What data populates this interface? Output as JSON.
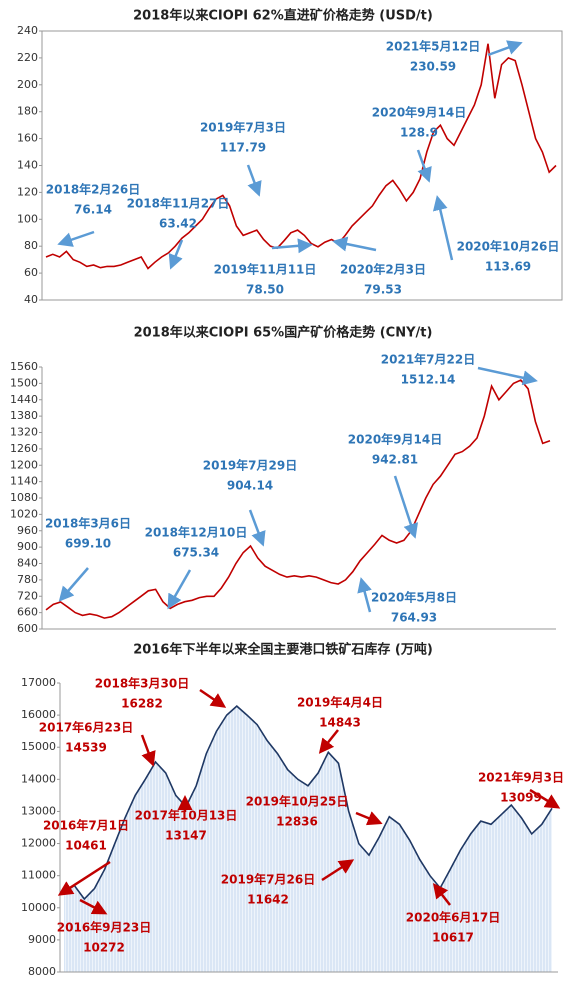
{
  "chart_data": [
    {
      "type": "line",
      "title": "2018年以来CIOPI 62%直进矿价格走势 (USD/t)",
      "ylim": [
        40,
        240
      ],
      "yticks": [
        40,
        60,
        80,
        100,
        120,
        140,
        160,
        180,
        200,
        220,
        240
      ],
      "grid": false,
      "series": [
        {
          "color": "#c00000",
          "values": [
            72,
            74,
            72,
            76.14,
            70,
            68,
            65,
            66,
            64,
            65,
            65,
            66,
            68,
            70,
            72,
            63.42,
            68,
            72,
            75,
            80,
            86,
            90,
            95,
            100,
            108,
            115,
            117.79,
            110,
            95,
            88,
            90,
            92,
            85,
            80,
            78.5,
            84,
            90,
            92,
            88,
            82,
            79.53,
            83,
            85,
            82,
            88,
            95,
            100,
            105,
            110,
            118,
            125,
            128.9,
            122,
            113.69,
            120,
            130,
            150,
            165,
            170,
            160,
            155,
            165,
            175,
            185,
            200,
            230.59,
            190,
            215,
            220,
            218,
            200,
            180,
            160,
            150,
            135,
            140
          ]
        }
      ],
      "annotations": [
        {
          "text": "2021年5月12日",
          "value": 230.59
        },
        {
          "text": "2020年9月14日",
          "value": 128.9
        },
        {
          "text": "2019年7月3日",
          "value": 117.79
        },
        {
          "text": "2018年2月26日",
          "value": 76.14
        },
        {
          "text": "2018年11月27日",
          "value": 63.42
        },
        {
          "text": "2019年11月11日",
          "value": {
            "value": 78.5,
            "label": "78.50"
          }
        },
        {
          "text": "2020年2月3日",
          "value": 79.53
        },
        {
          "text": "2020年10月26日",
          "value": 113.69
        }
      ]
    },
    {
      "type": "line",
      "title": "2018年以来CIOPI 65%国产矿价格走势 (CNY/t)",
      "ylim": [
        600,
        1560
      ],
      "yticks": [
        600,
        660,
        720,
        780,
        840,
        900,
        960,
        1020,
        1080,
        1140,
        1200,
        1260,
        1320,
        1380,
        1440,
        1500,
        1560
      ],
      "grid": false,
      "series": [
        {
          "color": "#c00000",
          "values": [
            670,
            690,
            699.1,
            680,
            660,
            650,
            655,
            650,
            640,
            645,
            660,
            680,
            700,
            720,
            740,
            745,
            700,
            675.34,
            690,
            700,
            705,
            715,
            720,
            720,
            750,
            790,
            840,
            880,
            904.14,
            860,
            830,
            815,
            800,
            790,
            795,
            790,
            795,
            790,
            780,
            770,
            764.93,
            780,
            810,
            850,
            880,
            910,
            942.81,
            925,
            915,
            925,
            960,
            1020,
            1080,
            1130,
            1160,
            1200,
            1240,
            1250,
            1270,
            1300,
            1380,
            1490,
            1440,
            1470,
            1500,
            1512.14,
            1480,
            1360,
            1280,
            1290
          ]
        }
      ],
      "annotations": [
        {
          "text": "2021年7月22日",
          "value": 1512.14
        },
        {
          "text": "2020年9月14日",
          "value": 942.81
        },
        {
          "text": "2019年7月29日",
          "value": 904.14
        },
        {
          "text": "2018年3月6日",
          "value": {
            "value": 699.1,
            "label": "699.10"
          }
        },
        {
          "text": "2018年12月10日",
          "value": 675.34
        },
        {
          "text": "2020年5月8日",
          "value": 764.93
        }
      ]
    },
    {
      "type": "area",
      "title": "2016年下半年以来全国主要港口铁矿石库存 (万吨)",
      "ylim": [
        8000,
        17000
      ],
      "yticks": [
        8000,
        9000,
        10000,
        11000,
        12000,
        13000,
        14000,
        15000,
        16000,
        17000
      ],
      "grid": false,
      "series": [
        {
          "color": "#1f3864",
          "values": [
            10461,
            10700,
            10272,
            10600,
            11200,
            12000,
            12800,
            13500,
            14000,
            14539,
            14200,
            13500,
            13147,
            13800,
            14800,
            15500,
            16000,
            16282,
            16000,
            15700,
            15200,
            14800,
            14300,
            14000,
            13800,
            14200,
            14843,
            14500,
            13000,
            12000,
            11642,
            12200,
            12836,
            12600,
            12100,
            11500,
            11000,
            10617,
            11200,
            11800,
            12300,
            12700,
            12600,
            12900,
            13200,
            12800,
            12300,
            12600,
            13099
          ]
        }
      ],
      "annotations": [
        {
          "text": "2018年3月30日",
          "value": 16282
        },
        {
          "text": "2017年6月23日",
          "value": 14539
        },
        {
          "text": "2016年7月1日",
          "value": 10461
        },
        {
          "text": "2016年9月23日",
          "value": 10272
        },
        {
          "text": "2017年10月13日",
          "value": 13147
        },
        {
          "text": "2019年4月4日",
          "value": 14843
        },
        {
          "text": "2019年10月25日",
          "value": 12836
        },
        {
          "text": "2019年7月26日",
          "value": 11642
        },
        {
          "text": "2020年6月17日",
          "value": 10617
        },
        {
          "text": "2021年9月3日",
          "value": 13099
        }
      ]
    }
  ]
}
